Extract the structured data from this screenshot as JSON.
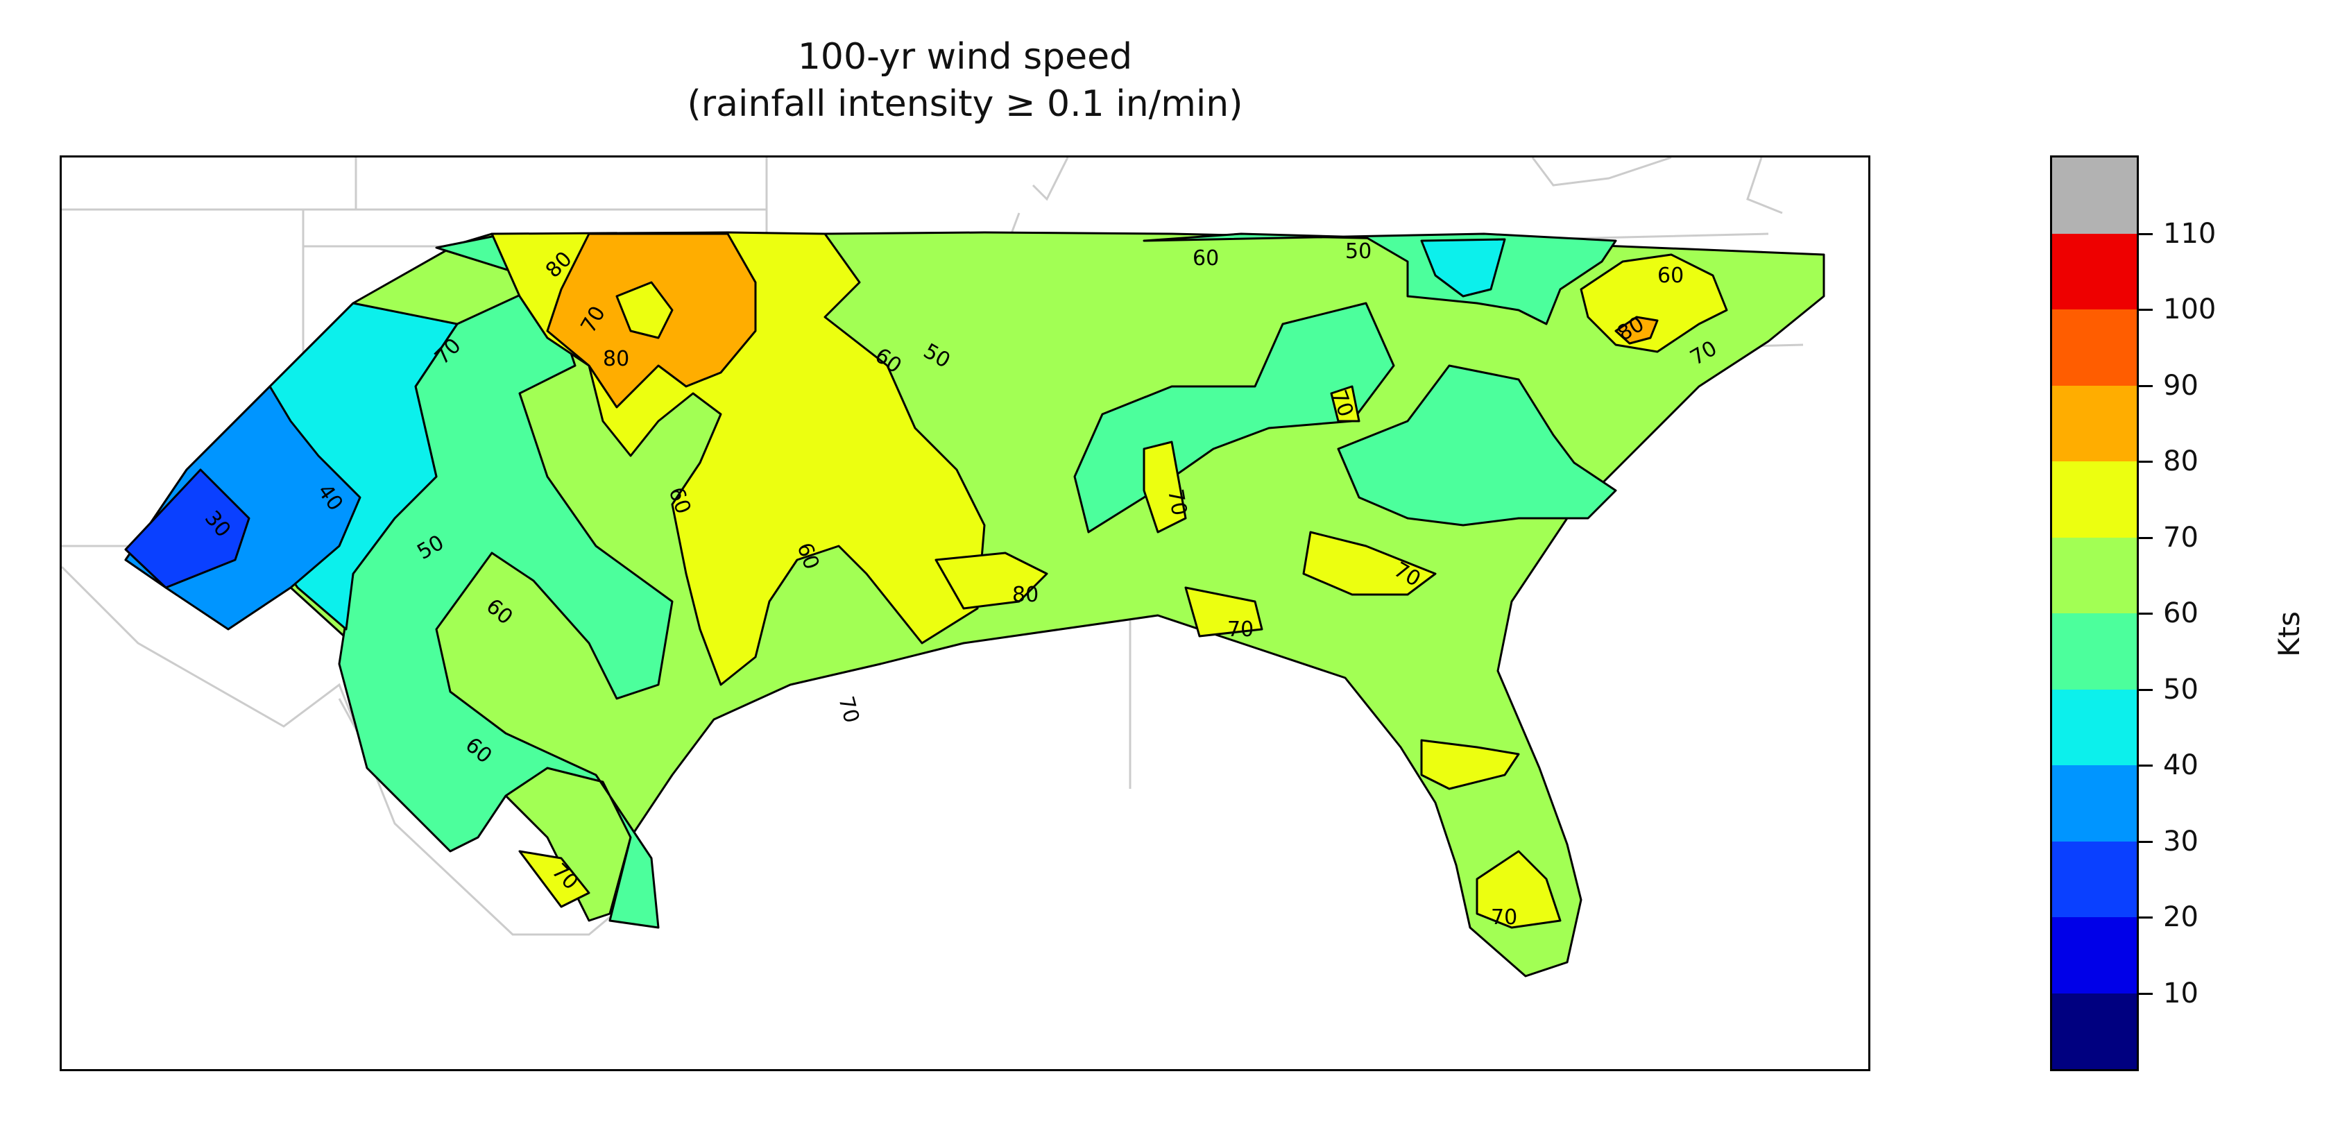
{
  "title": {
    "line1": "100-yr wind speed",
    "line2": "(rainfall intensity ≥ 0.1 in/min)"
  },
  "legend": {
    "units": "Kts",
    "ticks": [
      "10",
      "20",
      "30",
      "40",
      "50",
      "60",
      "70",
      "80",
      "90",
      "100",
      "110"
    ],
    "bins": [
      {
        "min": 0,
        "max": 10,
        "color": "#000080"
      },
      {
        "min": 10,
        "max": 20,
        "color": "#0000e8"
      },
      {
        "min": 20,
        "max": 30,
        "color": "#0a40ff"
      },
      {
        "min": 30,
        "max": 40,
        "color": "#0095ff"
      },
      {
        "min": 40,
        "max": 50,
        "color": "#0cf0ec"
      },
      {
        "min": 50,
        "max": 60,
        "color": "#4cff9c"
      },
      {
        "min": 60,
        "max": 70,
        "color": "#a2ff54"
      },
      {
        "min": 70,
        "max": 80,
        "color": "#ecff10"
      },
      {
        "min": 80,
        "max": 90,
        "color": "#ffad00"
      },
      {
        "min": 90,
        "max": 100,
        "color": "#ff5d00"
      },
      {
        "min": 100,
        "max": 110,
        "color": "#ee0000"
      },
      {
        "min": 110,
        "max": 120,
        "color": "#b2b2b2"
      }
    ]
  },
  "contour_labels": [
    "80",
    "70",
    "80",
    "70",
    "30",
    "40",
    "50",
    "60",
    "60",
    "60",
    "60",
    "60",
    "70",
    "60",
    "50",
    "70",
    "80",
    "70",
    "70",
    "70",
    "70",
    "60",
    "80",
    "70",
    "50",
    "70"
  ]
}
